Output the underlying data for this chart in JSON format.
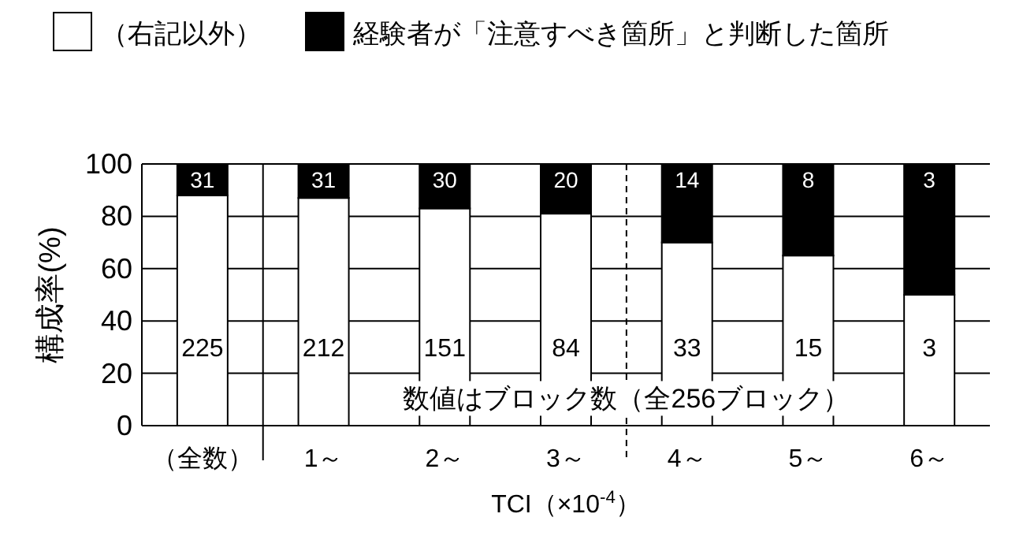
{
  "chart_data": {
    "type": "bar",
    "stacked": true,
    "ylabel": "構成率(%)",
    "xlabel": "TCI（×10$^{-4}$）",
    "categories": [
      "（全数）",
      "1～",
      "2～",
      "3～",
      "4～",
      "5～",
      "6～"
    ],
    "series": [
      {
        "name": "（右記以外）",
        "color": "#ffffff",
        "values": [
          88,
          87,
          83,
          81,
          70,
          65,
          50
        ]
      },
      {
        "name": "経験者が「注意すべき箇所」と判断した箇所",
        "color": "#000000",
        "values": [
          12,
          13,
          17,
          19,
          30,
          35,
          50
        ]
      }
    ],
    "ylim": [
      0,
      100
    ],
    "yticks": [
      0,
      20,
      40,
      60,
      80,
      100
    ],
    "grid": "y",
    "legend": "top",
    "annotations": [
      "数値はブロック数（全256ブロック）",
      "225",
      "212",
      "151",
      "84",
      "33",
      "15",
      "3",
      "31",
      "31",
      "30",
      "20",
      "14",
      "8",
      "3"
    ]
  }
}
